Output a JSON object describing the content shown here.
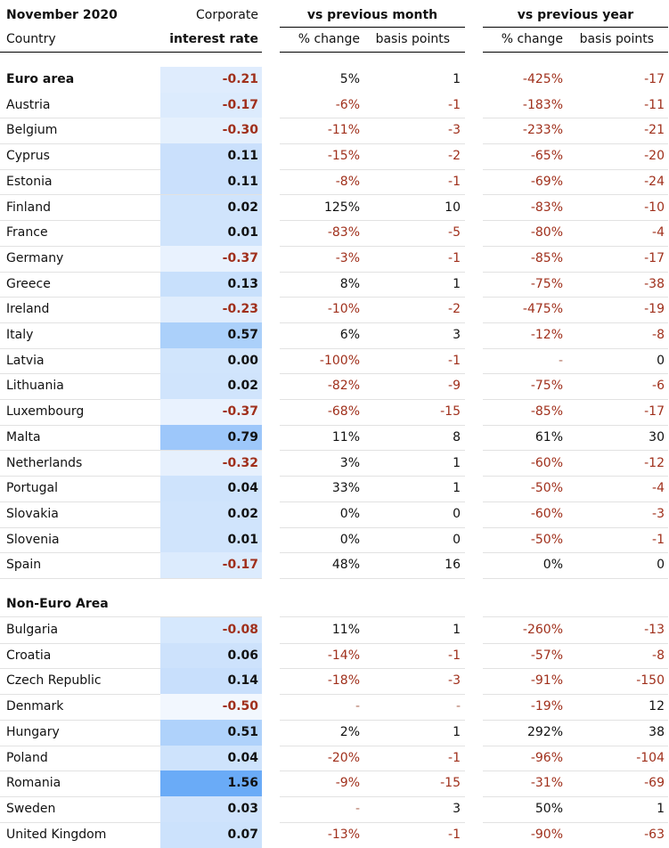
{
  "header": {
    "period": "November 2020",
    "metric_line1": "Corporate",
    "metric_line2": "interest rate",
    "country_label": "Country",
    "group_month": "vs previous month",
    "group_year": "vs previous year",
    "pct_label": "% change",
    "bp_label": "basis points"
  },
  "colors": {
    "negative_text": "#a0301c",
    "scale_low": "#f2f7fe",
    "scale_high": "#6aabf7"
  },
  "chart_data": {
    "type": "table",
    "columns": [
      "Country",
      "Corporate interest rate",
      "vs previous month % change",
      "vs previous month basis points",
      "vs previous year % change",
      "vs previous year basis points"
    ],
    "groups": [
      {
        "name": "Euro area",
        "rows": [
          {
            "country": "Austria",
            "rate": "-0.17",
            "rate_value": -0.17,
            "m_pct": "-6%",
            "m_bp": "-1",
            "y_pct": "-183%",
            "y_bp": "-11"
          },
          {
            "country": "Belgium",
            "rate": "-0.30",
            "rate_value": -0.3,
            "m_pct": "-11%",
            "m_bp": "-3",
            "y_pct": "-233%",
            "y_bp": "-21"
          },
          {
            "country": "Cyprus",
            "rate": "0.11",
            "rate_value": 0.11,
            "m_pct": "-15%",
            "m_bp": "-2",
            "y_pct": "-65%",
            "y_bp": "-20"
          },
          {
            "country": "Estonia",
            "rate": "0.11",
            "rate_value": 0.11,
            "m_pct": "-8%",
            "m_bp": "-1",
            "y_pct": "-69%",
            "y_bp": "-24"
          },
          {
            "country": "Finland",
            "rate": "0.02",
            "rate_value": 0.02,
            "m_pct": "125%",
            "m_bp": "10",
            "y_pct": "-83%",
            "y_bp": "-10"
          },
          {
            "country": "France",
            "rate": "0.01",
            "rate_value": 0.01,
            "m_pct": "-83%",
            "m_bp": "-5",
            "y_pct": "-80%",
            "y_bp": "-4"
          },
          {
            "country": "Germany",
            "rate": "-0.37",
            "rate_value": -0.37,
            "m_pct": "-3%",
            "m_bp": "-1",
            "y_pct": "-85%",
            "y_bp": "-17"
          },
          {
            "country": "Greece",
            "rate": "0.13",
            "rate_value": 0.13,
            "m_pct": "8%",
            "m_bp": "1",
            "y_pct": "-75%",
            "y_bp": "-38"
          },
          {
            "country": "Ireland",
            "rate": "-0.23",
            "rate_value": -0.23,
            "m_pct": "-10%",
            "m_bp": "-2",
            "y_pct": "-475%",
            "y_bp": "-19"
          },
          {
            "country": "Italy",
            "rate": "0.57",
            "rate_value": 0.57,
            "m_pct": "6%",
            "m_bp": "3",
            "y_pct": "-12%",
            "y_bp": "-8"
          },
          {
            "country": "Latvia",
            "rate": "0.00",
            "rate_value": 0.0,
            "m_pct": "-100%",
            "m_bp": "-1",
            "y_pct": "-",
            "y_bp": "0"
          },
          {
            "country": "Lithuania",
            "rate": "0.02",
            "rate_value": 0.02,
            "m_pct": "-82%",
            "m_bp": "-9",
            "y_pct": "-75%",
            "y_bp": "-6"
          },
          {
            "country": "Luxembourg",
            "rate": "-0.37",
            "rate_value": -0.37,
            "m_pct": "-68%",
            "m_bp": "-15",
            "y_pct": "-85%",
            "y_bp": "-17"
          },
          {
            "country": "Malta",
            "rate": "0.79",
            "rate_value": 0.79,
            "m_pct": "11%",
            "m_bp": "8",
            "y_pct": "61%",
            "y_bp": "30"
          },
          {
            "country": "Netherlands",
            "rate": "-0.32",
            "rate_value": -0.32,
            "m_pct": "3%",
            "m_bp": "1",
            "y_pct": "-60%",
            "y_bp": "-12"
          },
          {
            "country": "Portugal",
            "rate": "0.04",
            "rate_value": 0.04,
            "m_pct": "33%",
            "m_bp": "1",
            "y_pct": "-50%",
            "y_bp": "-4"
          },
          {
            "country": "Slovakia",
            "rate": "0.02",
            "rate_value": 0.02,
            "m_pct": "0%",
            "m_bp": "0",
            "y_pct": "-60%",
            "y_bp": "-3"
          },
          {
            "country": "Slovenia",
            "rate": "0.01",
            "rate_value": 0.01,
            "m_pct": "0%",
            "m_bp": "0",
            "y_pct": "-50%",
            "y_bp": "-1"
          },
          {
            "country": "Spain",
            "rate": "-0.17",
            "rate_value": -0.17,
            "m_pct": "48%",
            "m_bp": "16",
            "y_pct": "0%",
            "y_bp": "0"
          }
        ],
        "summary": {
          "country": "Euro area",
          "rate": "-0.21",
          "rate_value": -0.21,
          "m_pct": "5%",
          "m_bp": "1",
          "y_pct": "-425%",
          "y_bp": "-17"
        }
      },
      {
        "name": "Non-Euro Area",
        "rows": [
          {
            "country": "Bulgaria",
            "rate": "-0.08",
            "rate_value": -0.08,
            "m_pct": "11%",
            "m_bp": "1",
            "y_pct": "-260%",
            "y_bp": "-13"
          },
          {
            "country": "Croatia",
            "rate": "0.06",
            "rate_value": 0.06,
            "m_pct": "-14%",
            "m_bp": "-1",
            "y_pct": "-57%",
            "y_bp": "-8"
          },
          {
            "country": "Czech Republic",
            "rate": "0.14",
            "rate_value": 0.14,
            "m_pct": "-18%",
            "m_bp": "-3",
            "y_pct": "-91%",
            "y_bp": "-150"
          },
          {
            "country": "Denmark",
            "rate": "-0.50",
            "rate_value": -0.5,
            "m_pct": "-",
            "m_bp": "-",
            "y_pct": "-19%",
            "y_bp": "12"
          },
          {
            "country": "Hungary",
            "rate": "0.51",
            "rate_value": 0.51,
            "m_pct": "2%",
            "m_bp": "1",
            "y_pct": "292%",
            "y_bp": "38"
          },
          {
            "country": "Poland",
            "rate": "0.04",
            "rate_value": 0.04,
            "m_pct": "-20%",
            "m_bp": "-1",
            "y_pct": "-96%",
            "y_bp": "-104"
          },
          {
            "country": "Romania",
            "rate": "1.56",
            "rate_value": 1.56,
            "m_pct": "-9%",
            "m_bp": "-15",
            "y_pct": "-31%",
            "y_bp": "-69"
          },
          {
            "country": "Sweden",
            "rate": "0.03",
            "rate_value": 0.03,
            "m_pct": "-",
            "m_bp": "3",
            "y_pct": "50%",
            "y_bp": "1"
          },
          {
            "country": "United Kingdom",
            "rate": "0.07",
            "rate_value": 0.07,
            "m_pct": "-13%",
            "m_bp": "-1",
            "y_pct": "-90%",
            "y_bp": "-63"
          }
        ]
      }
    ]
  }
}
